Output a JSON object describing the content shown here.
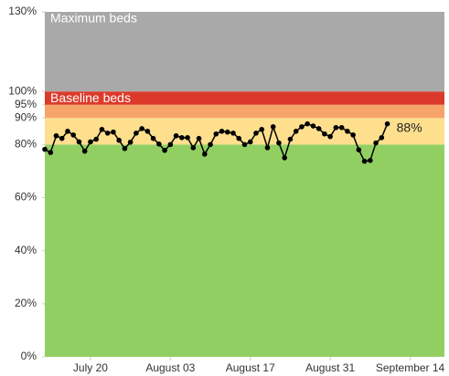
{
  "chart_data": {
    "type": "line",
    "x": [
      "July 12",
      "July 13",
      "July 14",
      "July 15",
      "July 16",
      "July 17",
      "July 18",
      "July 19",
      "July 20",
      "July 21",
      "July 22",
      "July 23",
      "July 24",
      "July 25",
      "July 26",
      "July 27",
      "July 28",
      "July 29",
      "July 30",
      "July 31",
      "August 01",
      "August 02",
      "August 03",
      "August 04",
      "August 05",
      "August 06",
      "August 07",
      "August 08",
      "August 09",
      "August 10",
      "August 11",
      "August 12",
      "August 13",
      "August 14",
      "August 15",
      "August 16",
      "August 17",
      "August 18",
      "August 19",
      "August 20",
      "August 21",
      "August 22",
      "August 23",
      "August 24",
      "August 25",
      "August 26",
      "August 27",
      "August 28",
      "August 29",
      "August 30",
      "August 31",
      "September 01",
      "September 02",
      "September 03",
      "September 04",
      "September 05",
      "September 06",
      "September 07",
      "September 08",
      "September 09",
      "September 10"
    ],
    "series": [
      {
        "color": "#000000",
        "values": [
          78.2,
          77,
          83.3,
          82.3,
          85,
          83.6,
          81,
          77.5,
          81,
          82,
          85.7,
          84.3,
          84.7,
          81.6,
          78.5,
          80.9,
          84.3,
          86,
          85,
          82.3,
          80.2,
          77.8,
          80,
          83.3,
          82.6,
          82.6,
          78.8,
          82.3,
          76.4,
          80,
          84,
          85,
          84.7,
          84.3,
          82.3,
          80,
          81,
          84.3,
          85.7,
          78.8,
          86.7,
          80.6,
          75,
          82,
          85,
          86.7,
          87.8,
          87,
          86,
          84,
          83,
          86.4,
          86.4,
          85,
          83.6,
          78,
          73.7,
          74,
          80.6,
          82.6,
          87.8
        ]
      }
    ],
    "bands": [
      {
        "from": 0,
        "to": 80,
        "color": "#92cf63"
      },
      {
        "from": 80,
        "to": 90,
        "color": "#fddf8e"
      },
      {
        "from": 90,
        "to": 95,
        "color": "#f7a46a"
      },
      {
        "from": 95,
        "to": 100,
        "color": "#db3a2a",
        "label": "Baseline beds"
      },
      {
        "from": 100,
        "to": 130,
        "color": "#a9a9a9",
        "label": "Maximum beds"
      }
    ],
    "annotation": "88%",
    "xlim": [
      "July 12",
      "September 20"
    ],
    "xticks": [
      "July 20",
      "August 03",
      "August 17",
      "August 31",
      "September 14"
    ],
    "ylim": [
      0,
      130
    ],
    "yticks": [
      {
        "value": 0,
        "label": "0%"
      },
      {
        "value": 20,
        "label": "20%"
      },
      {
        "value": 40,
        "label": "40%"
      },
      {
        "value": 60,
        "label": "60%"
      },
      {
        "value": 80,
        "label": "80%"
      },
      {
        "value": 90,
        "label": "90%"
      },
      {
        "value": 95,
        "label": "95%"
      },
      {
        "value": 100,
        "label": "100%"
      },
      {
        "value": 130,
        "label": "130%"
      }
    ]
  }
}
